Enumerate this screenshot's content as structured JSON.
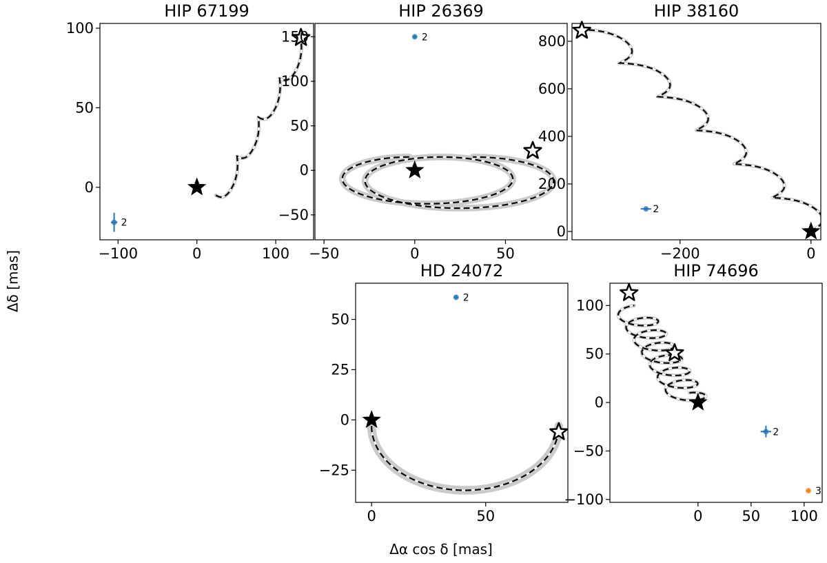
{
  "figure": {
    "xlabel": "Δα cos δ [mas]",
    "ylabel": "Δδ [mas]"
  },
  "colors": {
    "path_dash": "#000000",
    "path_band": "#9e9e9e",
    "marker_blue": "#1f77b4",
    "marker_orange": "#ff7f0e"
  },
  "chart_data": [
    {
      "type": "scatter",
      "title": "HIP 67199",
      "xlim": [
        -123,
        148
      ],
      "ylim": [
        -33,
        103
      ],
      "xticks": [
        -100,
        0,
        100
      ],
      "yticks": [
        0,
        50,
        100
      ],
      "xtick_labels": [
        "−100",
        "0",
        "100"
      ],
      "ytick_labels": [
        "0",
        "50",
        "100"
      ],
      "track": {
        "style": "cycloid",
        "start": [
          24,
          -5
        ],
        "end": [
          132,
          93
        ],
        "loops": 4,
        "band": 1
      },
      "start_marker": [
        0,
        0
      ],
      "end_markers": [
        [
          132,
          94
        ]
      ],
      "points": [
        {
          "x": -105,
          "y": -22,
          "xerr": 4,
          "yerr": 6,
          "label": "2",
          "color": "blue"
        }
      ]
    },
    {
      "type": "scatter",
      "title": "HIP 26369",
      "xlim": [
        -55,
        84
      ],
      "ylim": [
        -78,
        165
      ],
      "xticks": [
        -50,
        0,
        50
      ],
      "yticks": [
        -50,
        0,
        50,
        100,
        150
      ],
      "xtick_labels": [
        "−50",
        "0",
        "50"
      ],
      "ytick_labels": [
        "−50",
        "0",
        "50",
        "100",
        "150"
      ],
      "track": {
        "style": "two-loops",
        "band": 2.5
      },
      "start_marker": [
        0,
        0
      ],
      "end_markers": [
        [
          65,
          22
        ]
      ],
      "points": [
        {
          "x": 0,
          "y": 150,
          "xerr": 1,
          "yerr": 2,
          "label": "2",
          "color": "blue"
        }
      ]
    },
    {
      "type": "scatter",
      "title": "HIP 38160",
      "xlim": [
        -365,
        15
      ],
      "ylim": [
        -35,
        875
      ],
      "xticks": [
        -200,
        0
      ],
      "yticks": [
        0,
        200,
        400,
        600,
        800
      ],
      "xtick_labels": [
        "−200",
        "0"
      ],
      "ytick_labels": [
        "0",
        "200",
        "400",
        "600",
        "800"
      ],
      "track": {
        "style": "cycloid",
        "start": [
          -1,
          1
        ],
        "end": [
          -350,
          850
        ],
        "loops": 6,
        "band": 1
      },
      "start_marker": [
        0,
        0
      ],
      "end_markers": [
        [
          -350,
          845
        ]
      ],
      "points": [
        {
          "x": -252,
          "y": 95,
          "xerr": 8,
          "yerr": 5,
          "label": "2",
          "color": "blue"
        }
      ]
    },
    {
      "type": "scatter",
      "title": "HD 24072",
      "xlim": [
        -7,
        86
      ],
      "ylim": [
        -41,
        68
      ],
      "xticks": [
        0,
        50
      ],
      "yticks": [
        -25,
        0,
        25,
        50
      ],
      "xtick_labels": [
        "0",
        "50"
      ],
      "ytick_labels": [
        "−25",
        "0",
        "25",
        "50"
      ],
      "track": {
        "style": "arc",
        "band": 3.5
      },
      "start_marker": [
        0,
        0
      ],
      "end_markers": [
        [
          82,
          -6
        ]
      ],
      "points": [
        {
          "x": 37,
          "y": 61,
          "xerr": 1,
          "yerr": 1,
          "label": "2",
          "color": "blue"
        }
      ]
    },
    {
      "type": "scatter",
      "title": "HIP 74696",
      "xlim": [
        -83,
        117
      ],
      "ylim": [
        -103,
        123
      ],
      "xticks": [
        0,
        50,
        100
      ],
      "yticks": [
        -100,
        -50,
        0,
        50,
        100
      ],
      "xtick_labels": [
        "0",
        "50",
        "100"
      ],
      "ytick_labels": [
        "−100",
        "−50",
        "0",
        "50",
        "100"
      ],
      "track": {
        "style": "helix",
        "band": 1
      },
      "start_marker": [
        0,
        0
      ],
      "end_markers": [
        [
          -22,
          51
        ],
        [
          -65,
          113
        ]
      ],
      "points": [
        {
          "x": 64,
          "y": -30,
          "xerr": 5,
          "yerr": 6,
          "label": "2",
          "color": "blue"
        },
        {
          "x": 104,
          "y": -91,
          "xerr": 2,
          "yerr": 2,
          "label": "3",
          "color": "orange"
        }
      ]
    }
  ]
}
